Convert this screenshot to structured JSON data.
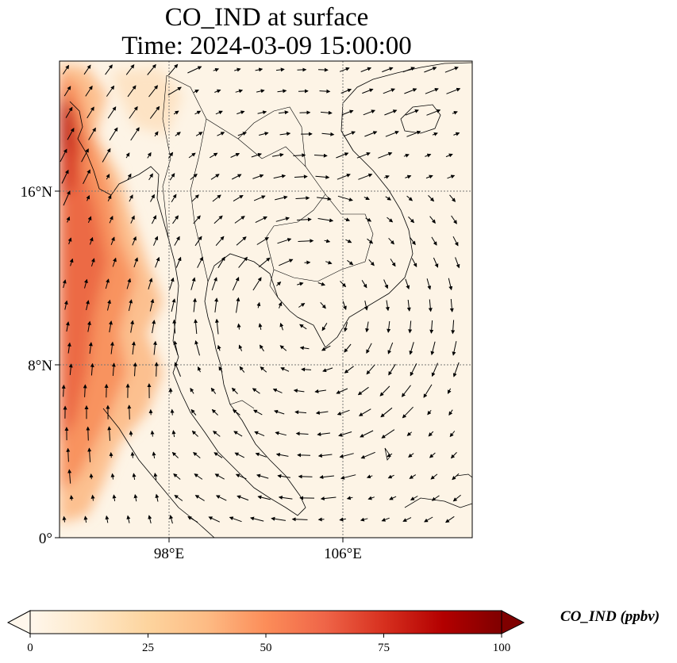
{
  "title": {
    "line1": "CO_IND at surface",
    "line2": "Time: 2024-03-09 15:00:00"
  },
  "map": {
    "lon_ticks": [
      "98°E",
      "106°E"
    ],
    "lat_ticks": [
      "16°N",
      "8°N",
      "0°"
    ],
    "gridlines": "dotted",
    "field_colormap": "OrRd",
    "wind_vectors": true,
    "high_concentration_region": "west (Andaman Sea / Myanmar coast)"
  },
  "colorbar": {
    "label": "CO_IND (ppbv)",
    "ticks": [
      "0",
      "25",
      "50",
      "75",
      "100"
    ],
    "min": 0,
    "max": 100,
    "extend": "both",
    "colors": [
      "#fff7ec",
      "#fee8c8",
      "#fdd49e",
      "#fdbb84",
      "#fc8d59",
      "#ef6548",
      "#d7301f",
      "#b30000",
      "#7f0000"
    ]
  }
}
